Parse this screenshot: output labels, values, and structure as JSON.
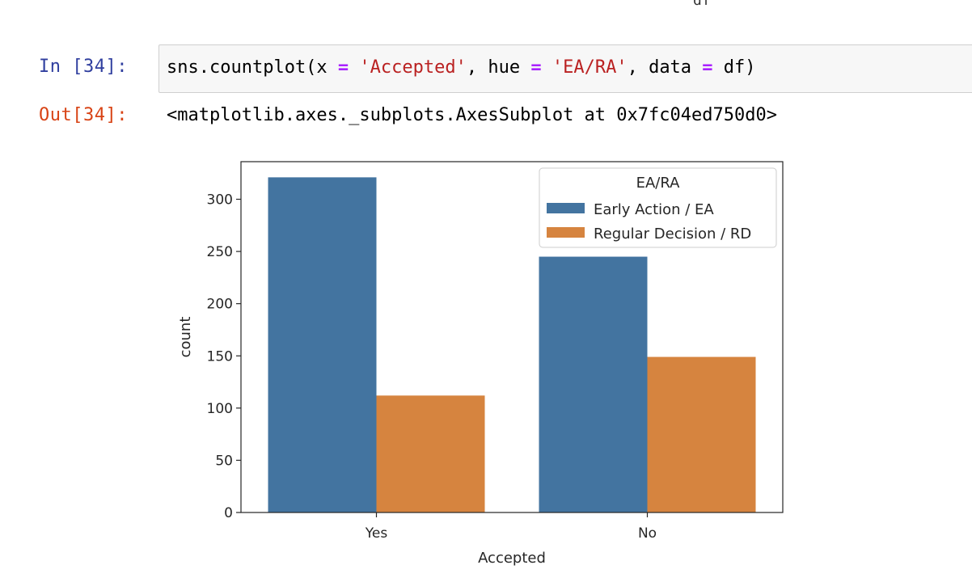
{
  "top_fragment": "df",
  "input_cell": {
    "prompt": "In [34]:",
    "code_tokens": [
      {
        "text": "sns.countplot(x ",
        "cls": ""
      },
      {
        "text": "=",
        "cls": "tok-op"
      },
      {
        "text": " ",
        "cls": ""
      },
      {
        "text": "'Accepted'",
        "cls": "tok-str"
      },
      {
        "text": ", hue ",
        "cls": ""
      },
      {
        "text": "=",
        "cls": "tok-op"
      },
      {
        "text": " ",
        "cls": ""
      },
      {
        "text": "'EA/RA'",
        "cls": "tok-str"
      },
      {
        "text": ", data ",
        "cls": ""
      },
      {
        "text": "=",
        "cls": "tok-op"
      },
      {
        "text": " df)",
        "cls": ""
      }
    ]
  },
  "output_cell": {
    "prompt": "Out[34]:",
    "text": "<matplotlib.axes._subplots.AxesSubplot at 0x7fc04ed750d0>"
  },
  "chart_data": {
    "type": "bar",
    "categories": [
      "Yes",
      "No"
    ],
    "series": [
      {
        "name": "Early Action / EA",
        "color": "#4374a0",
        "values": [
          321,
          245
        ]
      },
      {
        "name": "Regular Decision / RD",
        "color": "#d6843f",
        "values": [
          112,
          149
        ]
      }
    ],
    "xlabel": "Accepted",
    "ylabel": "count",
    "ylim": [
      0,
      336
    ],
    "yticks": [
      0,
      50,
      100,
      150,
      200,
      250,
      300
    ],
    "legend": {
      "title": "EA/RA",
      "placement": "top-right"
    },
    "grid": false
  }
}
